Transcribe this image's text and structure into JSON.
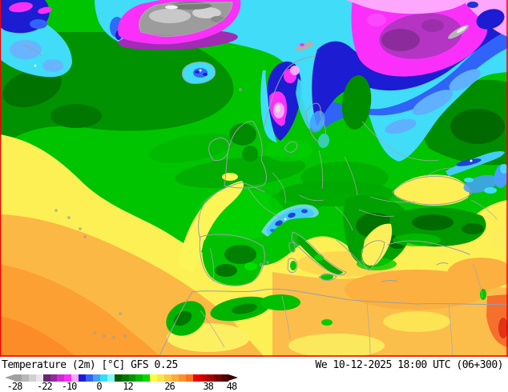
{
  "legend": {
    "title": "Temperature (2m) [°C] GFS 0.25",
    "timestamp": "We 10-12-2025 18:00 UTC (06+300)",
    "colorbar": {
      "left_arrow_color": "#a0a0a0",
      "right_arrow_color": "#380000",
      "cells": [
        "#a0a0a0",
        "#b8b8b8",
        "#d0d0d0",
        "#e8e8e8",
        "#66286e",
        "#9628a2",
        "#ca2ed6",
        "#fa30fa",
        "#ffa6ff",
        "#1c1cd2",
        "#3064f8",
        "#46a0ff",
        "#38dcf8",
        "#80f8f0",
        "#005a00",
        "#007800",
        "#009600",
        "#00b800",
        "#00d800",
        "#fcfc44",
        "#fce44e",
        "#fcc846",
        "#fcac3c",
        "#fc9030",
        "#fc7418",
        "#ec0000",
        "#c80000",
        "#a00000",
        "#780000",
        "#500000"
      ],
      "ticks": [
        {
          "label": "-28",
          "pct": 0
        },
        {
          "label": "-22",
          "pct": 14
        },
        {
          "label": "-10",
          "pct": 25.5
        },
        {
          "label": "0",
          "pct": 39.5
        },
        {
          "label": "12",
          "pct": 53
        },
        {
          "label": "26",
          "pct": 72.5
        },
        {
          "label": "38",
          "pct": 90.5
        },
        {
          "label": "48",
          "pct": 101.5
        }
      ]
    }
  },
  "map": {
    "frame_color": "#ee0000",
    "key_colors": {
      "ocean_mild_green": "#00c400",
      "cool_dark_green": "#008c00",
      "warm_yellow": "#fcf054",
      "warm_orange": "#fcb040",
      "hot_deep_orange": "#f4702c",
      "cold_cyan": "#40dcf8",
      "cold_blue": "#3064f8",
      "cold_dark_blue": "#1c1cd2",
      "very_cold_magenta": "#fa30fa",
      "very_cold_pink": "#ffa6ff",
      "ice_gray": "#9c9c9c",
      "coastline_gray": "#a0a0a0"
    }
  }
}
